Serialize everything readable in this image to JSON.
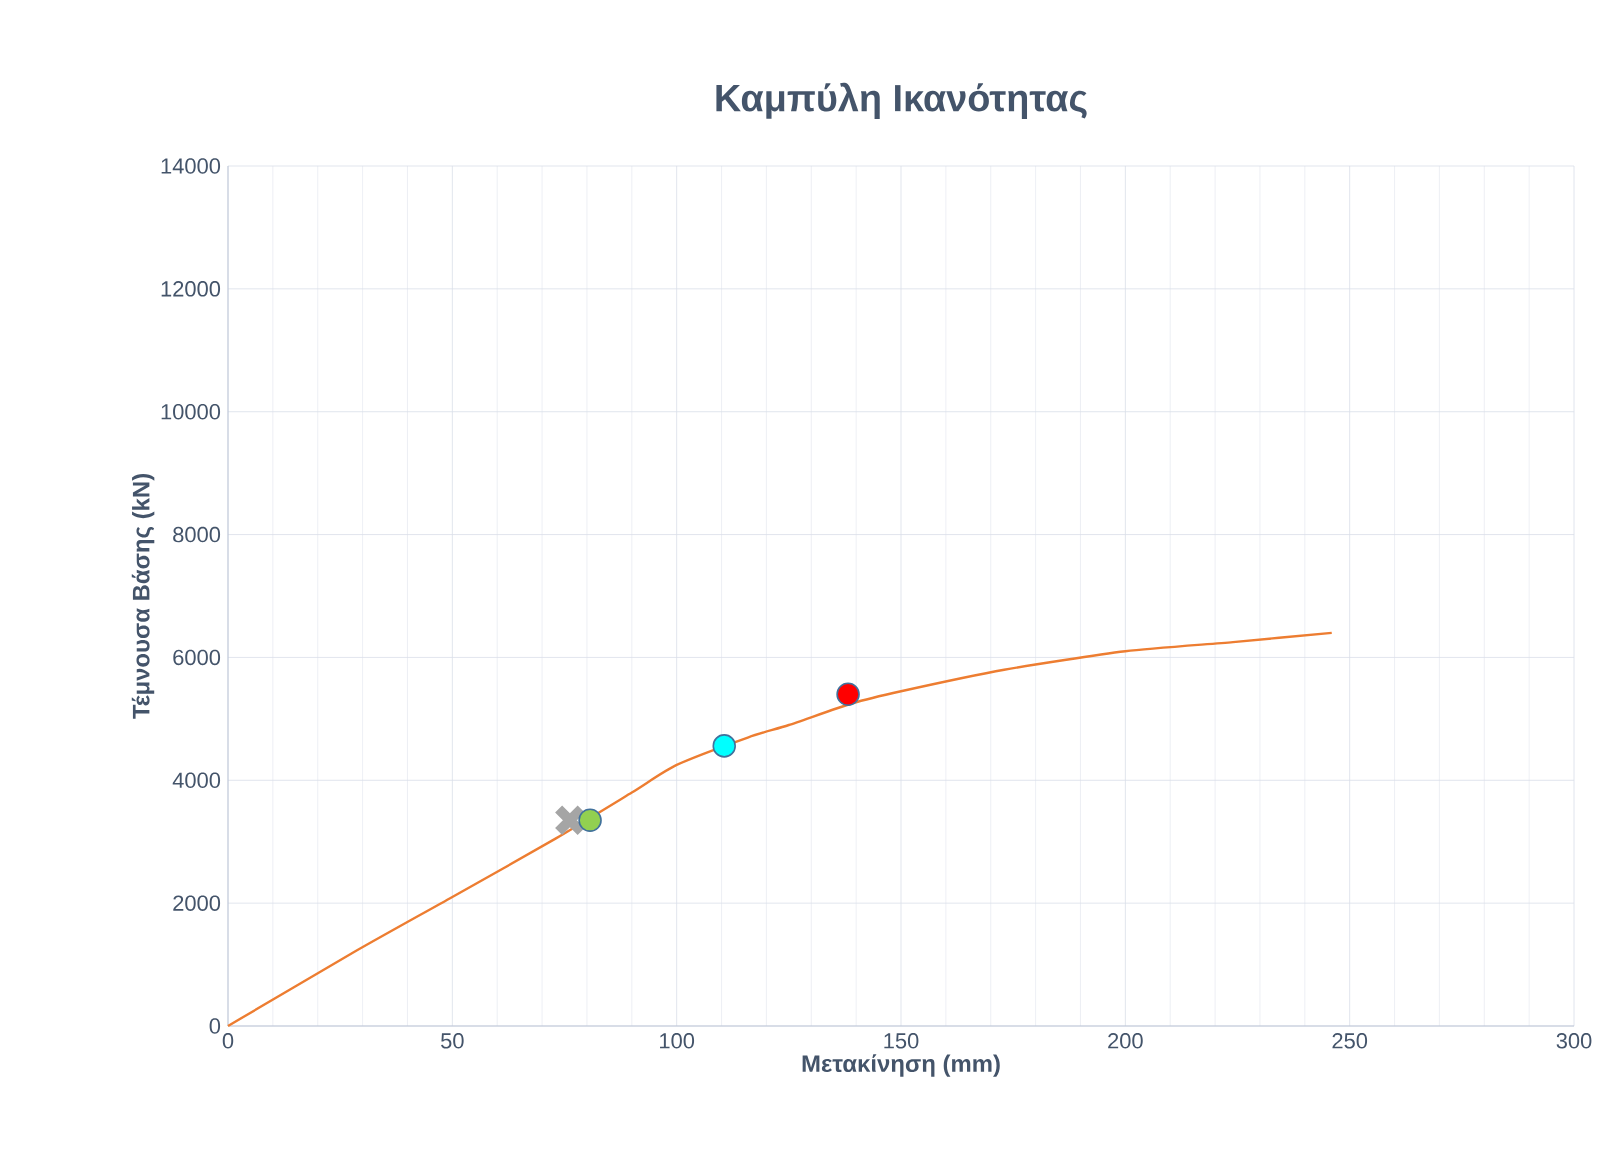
{
  "chart_data": {
    "type": "line",
    "title": "Καμπύλη Ικανότητας",
    "xlabel": "Μετακίνηση (mm)",
    "ylabel": "Τέμνουσα Βάσης (kN)",
    "xlim": [
      0,
      300
    ],
    "xticks": [
      0,
      50,
      100,
      150,
      200,
      250,
      300
    ],
    "ylim": [
      0,
      14000
    ],
    "yticks": [
      0,
      2000,
      4000,
      6000,
      8000,
      10000,
      12000,
      14000
    ],
    "grid": true,
    "series": [
      {
        "color": "#ed7d31",
        "marker": "none",
        "x": [
          0,
          28,
          50,
          73,
          90,
          100,
          116,
          125,
          139,
          150,
          173,
          200,
          224,
          246
        ],
        "values": [
          0,
          1200,
          2100,
          3050,
          3800,
          4250,
          4700,
          4900,
          5250,
          5450,
          5800,
          6100,
          6250,
          6400
        ]
      },
      {
        "type": "scatter",
        "color": "#a5a5a5",
        "marker": "cross",
        "x": [
          76.2
        ],
        "values": [
          3350
        ]
      },
      {
        "type": "scatter",
        "color": "#92d050",
        "marker": "circle",
        "x": [
          80.7
        ],
        "values": [
          3350
        ]
      },
      {
        "type": "scatter",
        "color": "#00ffff",
        "marker": "circle",
        "x": [
          110.6
        ],
        "values": [
          4560
        ]
      },
      {
        "type": "scatter",
        "color": "#ff0000",
        "marker": "circle",
        "x": [
          138.2
        ],
        "values": [
          5400
        ]
      }
    ]
  }
}
